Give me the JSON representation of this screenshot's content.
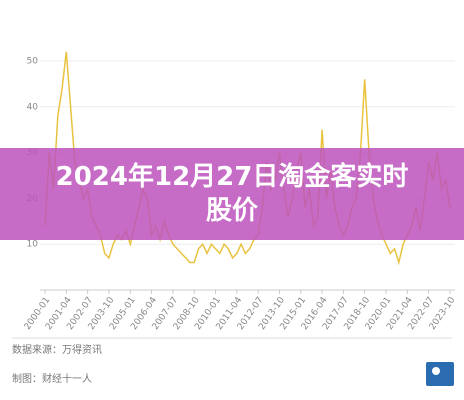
{
  "chart_data": {
    "type": "line",
    "title": "2024年12月27日淘金客实时股价",
    "source": "数据来源：万得资讯",
    "credit": "制图：财经十一人",
    "categories": [
      "2000-01",
      null,
      null,
      null,
      null,
      "2001-04",
      null,
      null,
      null,
      null,
      "2002-07",
      null,
      null,
      null,
      null,
      "2003-10",
      null,
      null,
      null,
      null,
      "2005-01",
      null,
      null,
      null,
      null,
      "2006-04",
      null,
      null,
      null,
      null,
      "2007-07",
      null,
      null,
      null,
      null,
      "2008-10",
      null,
      null,
      null,
      null,
      "2010-01",
      null,
      null,
      null,
      null,
      "2011-04",
      null,
      null,
      null,
      null,
      "2012-07",
      null,
      null,
      null,
      null,
      "2013-10",
      null,
      null,
      null,
      null,
      "2015-01",
      null,
      null,
      null,
      null,
      "2016-04",
      null,
      null,
      null,
      null,
      "2017-07",
      null,
      null,
      null,
      null,
      "2018-10",
      null,
      null,
      null,
      null,
      "2020-01",
      null,
      null,
      null,
      null,
      "2021-04",
      null,
      null,
      null,
      null,
      "2022-07",
      null,
      null,
      null,
      null,
      "2023-10"
    ],
    "series": [
      {
        "color": "#e9c340",
        "values": [
          14,
          30,
          22,
          38,
          44,
          52,
          40,
          28,
          24,
          20,
          22,
          16,
          14,
          12,
          8,
          7,
          10,
          12,
          11,
          13,
          10,
          14,
          18,
          22,
          20,
          12,
          14,
          11,
          15,
          12,
          10,
          9,
          8,
          7,
          6,
          6,
          9,
          10,
          8,
          10,
          9,
          8,
          10,
          9,
          7,
          8,
          10,
          8,
          9,
          11,
          12,
          18,
          28,
          22,
          24,
          30,
          22,
          16,
          20,
          26,
          30,
          18,
          22,
          14,
          16,
          35,
          20,
          26,
          18,
          14,
          12,
          14,
          18,
          20,
          30,
          46,
          30,
          20,
          15,
          12,
          10,
          8,
          9,
          6,
          10,
          12,
          14,
          18,
          13,
          20,
          28,
          24,
          30,
          22,
          24,
          18
        ]
      }
    ],
    "ylim": [
      0,
      50
    ],
    "yticks": [
      10,
      20,
      30,
      40,
      50
    ],
    "grid": true
  }
}
